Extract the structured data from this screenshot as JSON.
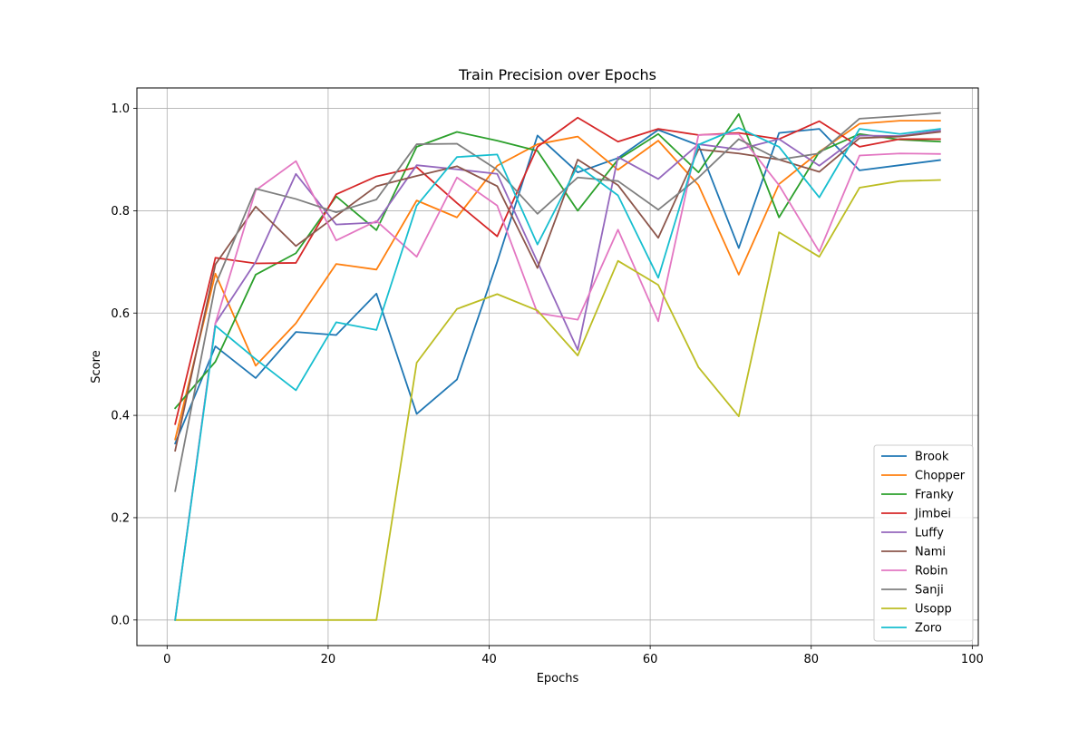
{
  "chart_data": {
    "type": "line",
    "title": "Train Precision over Epochs",
    "xlabel": "Epochs",
    "ylabel": "Score",
    "xlim": [
      -3.75,
      100.75
    ],
    "ylim": [
      -0.05,
      1.04
    ],
    "xticks": [
      0,
      20,
      40,
      60,
      80,
      100
    ],
    "xtick_labels": [
      "0",
      "20",
      "40",
      "60",
      "80",
      "100"
    ],
    "yticks": [
      0.0,
      0.2,
      0.4,
      0.6,
      0.8,
      1.0
    ],
    "ytick_labels": [
      "0.0",
      "0.2",
      "0.4",
      "0.6",
      "0.8",
      "1.0"
    ],
    "grid": true,
    "legend_position": "lower-right",
    "x": [
      1,
      6,
      11,
      16,
      21,
      26,
      31,
      36,
      41,
      46,
      51,
      56,
      61,
      66,
      71,
      76,
      81,
      86,
      91,
      96
    ],
    "series": [
      {
        "name": "Brook",
        "color": "#1f77b4",
        "values": [
          0.345,
          0.535,
          0.473,
          0.563,
          0.557,
          0.638,
          0.403,
          0.47,
          0.7,
          0.947,
          0.875,
          0.903,
          0.958,
          0.928,
          0.727,
          0.952,
          0.96,
          0.879,
          0.889,
          0.899
        ]
      },
      {
        "name": "Chopper",
        "color": "#ff7f0e",
        "values": [
          0.353,
          0.677,
          0.497,
          0.58,
          0.696,
          0.685,
          0.82,
          0.787,
          0.888,
          0.93,
          0.945,
          0.88,
          0.937,
          0.85,
          0.675,
          0.852,
          0.915,
          0.97,
          0.976,
          0.976
        ]
      },
      {
        "name": "Franky",
        "color": "#2ca02c",
        "values": [
          0.414,
          0.505,
          0.675,
          0.717,
          0.828,
          0.762,
          0.925,
          0.954,
          0.937,
          0.917,
          0.8,
          0.9,
          0.95,
          0.875,
          0.989,
          0.787,
          0.915,
          0.95,
          0.939,
          0.935
        ]
      },
      {
        "name": "Jimbei",
        "color": "#d62728",
        "values": [
          0.383,
          0.708,
          0.697,
          0.698,
          0.832,
          0.867,
          0.885,
          0.815,
          0.75,
          0.925,
          0.982,
          0.935,
          0.96,
          0.948,
          0.952,
          0.94,
          0.975,
          0.925,
          0.94,
          0.94
        ]
      },
      {
        "name": "Luffy",
        "color": "#9467bd",
        "values": [
          0.0,
          0.58,
          0.7,
          0.872,
          0.773,
          0.777,
          0.889,
          0.881,
          0.872,
          0.7,
          0.528,
          0.905,
          0.862,
          0.93,
          0.92,
          0.94,
          0.888,
          0.947,
          0.946,
          0.957
        ]
      },
      {
        "name": "Nami",
        "color": "#8c564b",
        "values": [
          0.331,
          0.695,
          0.808,
          0.731,
          0.79,
          0.848,
          0.868,
          0.887,
          0.848,
          0.688,
          0.9,
          0.85,
          0.747,
          0.92,
          0.912,
          0.9,
          0.876,
          0.942,
          0.945,
          0.954
        ]
      },
      {
        "name": "Robin",
        "color": "#e377c2",
        "values": [
          0.0,
          0.58,
          0.84,
          0.897,
          0.742,
          0.78,
          0.71,
          0.865,
          0.81,
          0.6,
          0.587,
          0.763,
          0.584,
          0.948,
          0.95,
          0.85,
          0.72,
          0.908,
          0.912,
          0.911
        ]
      },
      {
        "name": "Sanji",
        "color": "#7f7f7f",
        "values": [
          0.252,
          0.655,
          0.843,
          0.823,
          0.797,
          0.822,
          0.93,
          0.931,
          0.88,
          0.794,
          0.865,
          0.858,
          0.802,
          0.865,
          0.94,
          0.9,
          0.912,
          0.98,
          0.985,
          0.991
        ]
      },
      {
        "name": "Usopp",
        "color": "#bcbd22",
        "values": [
          0.0,
          0.0,
          0.0,
          0.0,
          0.0,
          0.0,
          0.503,
          0.608,
          0.637,
          0.605,
          0.517,
          0.702,
          0.655,
          0.494,
          0.398,
          0.758,
          0.71,
          0.845,
          0.858,
          0.86
        ]
      },
      {
        "name": "Zoro",
        "color": "#17becf",
        "values": [
          0.0,
          0.575,
          0.51,
          0.449,
          0.582,
          0.567,
          0.81,
          0.905,
          0.91,
          0.734,
          0.888,
          0.83,
          0.669,
          0.929,
          0.962,
          0.925,
          0.826,
          0.96,
          0.95,
          0.96
        ]
      }
    ]
  }
}
